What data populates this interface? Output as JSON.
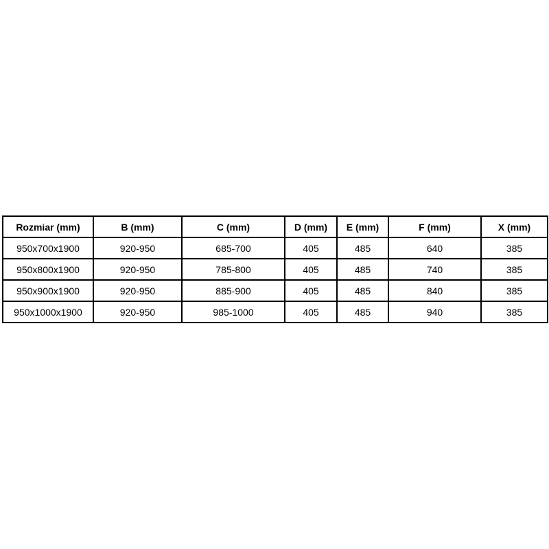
{
  "table": {
    "headers": [
      "Rozmiar (mm)",
      "B (mm)",
      "C (mm)",
      "D (mm)",
      "E (mm)",
      "F (mm)",
      "X (mm)"
    ],
    "rows": [
      [
        "950x700x1900",
        "920-950",
        "685-700",
        "405",
        "485",
        "640",
        "385"
      ],
      [
        "950x800x1900",
        "920-950",
        "785-800",
        "405",
        "485",
        "740",
        "385"
      ],
      [
        "950x900x1900",
        "920-950",
        "885-900",
        "405",
        "485",
        "840",
        "385"
      ],
      [
        "950x1000x1900",
        "920-950",
        "985-1000",
        "405",
        "485",
        "940",
        "385"
      ]
    ],
    "colors": {
      "border": "#000000",
      "background": "#ffffff",
      "text": "#000000"
    }
  }
}
